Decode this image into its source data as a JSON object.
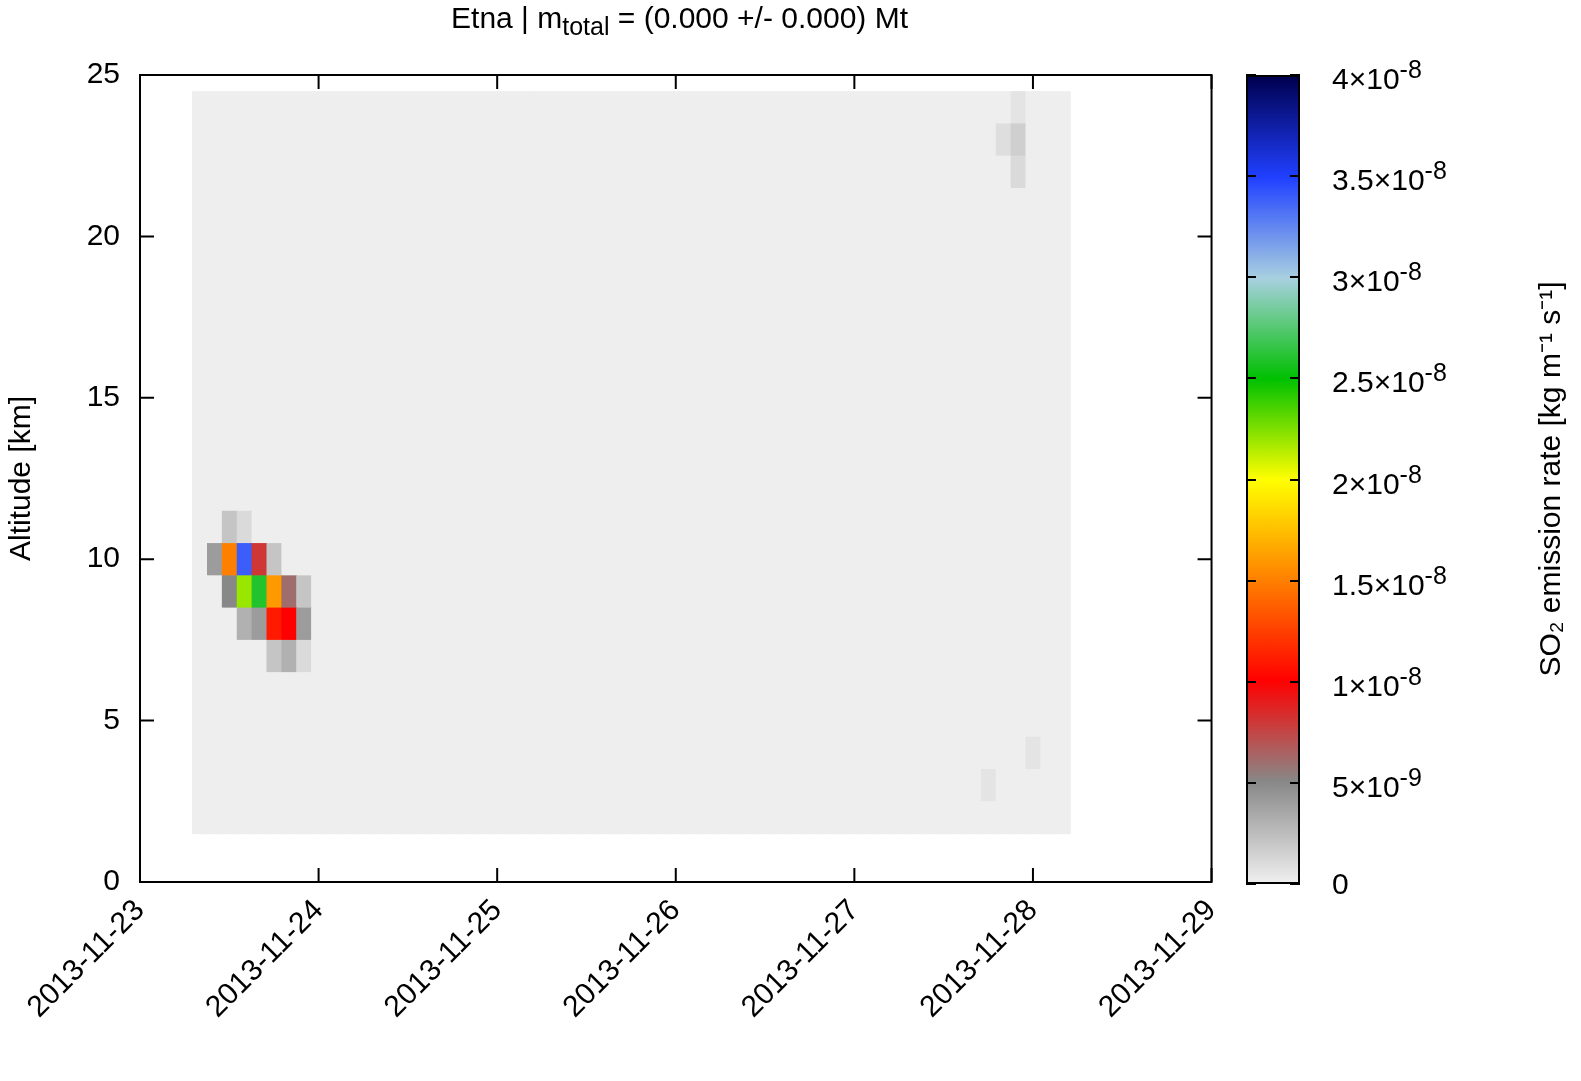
{
  "chart_data": {
    "type": "heatmap",
    "title": "Etna | m$_{total}$ = (0.000 +/- 0.000) Mt",
    "ylabel": "Altitude [km]",
    "clabel": "SO₂ emission rate [kg m⁻¹ s⁻¹]",
    "x": [
      "2013-11-23T08:00",
      "2013-11-23T10:00",
      "2013-11-23T12:00",
      "2013-11-23T14:00",
      "2013-11-23T16:00",
      "2013-11-23T18:00",
      "2013-11-23T20:00",
      "2013-11-23T22:00",
      "2013-11-24T00:00",
      "2013-11-24T02:00",
      "2013-11-24T04:00",
      "2013-11-24T06:00",
      "2013-11-24T08:00",
      "2013-11-24T10:00",
      "2013-11-24T12:00",
      "2013-11-24T14:00",
      "2013-11-24T16:00",
      "2013-11-24T18:00",
      "2013-11-24T20:00",
      "2013-11-24T22:00",
      "2013-11-25T00:00",
      "2013-11-25T02:00",
      "2013-11-25T04:00",
      "2013-11-25T06:00",
      "2013-11-25T08:00",
      "2013-11-25T10:00",
      "2013-11-25T12:00",
      "2013-11-25T14:00",
      "2013-11-25T16:00",
      "2013-11-25T18:00",
      "2013-11-25T20:00",
      "2013-11-25T22:00",
      "2013-11-26T00:00",
      "2013-11-26T02:00",
      "2013-11-26T04:00",
      "2013-11-26T06:00",
      "2013-11-26T08:00",
      "2013-11-26T10:00",
      "2013-11-26T12:00",
      "2013-11-26T14:00",
      "2013-11-26T16:00",
      "2013-11-26T18:00",
      "2013-11-26T20:00",
      "2013-11-26T22:00",
      "2013-11-27T00:00",
      "2013-11-27T02:00",
      "2013-11-27T04:00",
      "2013-11-27T06:00",
      "2013-11-27T08:00",
      "2013-11-27T10:00",
      "2013-11-27T12:00",
      "2013-11-27T14:00",
      "2013-11-27T16:00",
      "2013-11-27T18:00",
      "2013-11-27T20:00",
      "2013-11-27T22:00",
      "2013-11-28T00:00",
      "2013-11-28T02:00",
      "2013-11-28T04:00"
    ],
    "y": [
      24,
      23,
      22,
      21,
      20,
      19,
      18,
      17,
      16,
      15,
      14,
      13,
      12,
      11,
      10,
      9,
      8,
      7,
      6,
      5,
      4,
      3,
      2
    ],
    "cells": [
      [
        0,
        0,
        0,
        0,
        0,
        0,
        0,
        0,
        0,
        0,
        0,
        0,
        0,
        0,
        0,
        0,
        0,
        0,
        0,
        0,
        0,
        0,
        0,
        0,
        0,
        0,
        0,
        0,
        0,
        0,
        0,
        0,
        0,
        0,
        0,
        0,
        0,
        0,
        0,
        0,
        0,
        0,
        0,
        0,
        0,
        0,
        0,
        0,
        0,
        0,
        0,
        0,
        0,
        0,
        0,
        5e-10,
        0,
        0,
        0
      ],
      [
        0,
        0,
        0,
        0,
        0,
        0,
        0,
        0,
        0,
        0,
        0,
        0,
        0,
        0,
        0,
        0,
        0,
        0,
        0,
        0,
        0,
        0,
        0,
        0,
        0,
        0,
        0,
        0,
        0,
        0,
        0,
        0,
        0,
        0,
        0,
        0,
        0,
        0,
        0,
        0,
        0,
        0,
        0,
        0,
        0,
        0,
        0,
        0,
        0,
        0,
        0,
        0,
        0,
        0,
        8e-10,
        1.5e-09,
        0,
        0,
        0
      ],
      [
        0,
        0,
        0,
        0,
        0,
        0,
        0,
        0,
        0,
        0,
        0,
        0,
        0,
        0,
        0,
        0,
        0,
        0,
        0,
        0,
        0,
        0,
        0,
        0,
        0,
        0,
        0,
        0,
        0,
        0,
        0,
        0,
        0,
        0,
        0,
        0,
        0,
        0,
        0,
        0,
        0,
        0,
        0,
        0,
        0,
        0,
        0,
        0,
        0,
        0,
        0,
        0,
        0,
        0,
        0,
        1e-09,
        0,
        0,
        0
      ],
      [
        0,
        0,
        0,
        0,
        0,
        0,
        0,
        0,
        0,
        0,
        0,
        0,
        0,
        0,
        0,
        0,
        0,
        0,
        0,
        0,
        0,
        0,
        0,
        0,
        0,
        0,
        0,
        0,
        0,
        0,
        0,
        0,
        0,
        0,
        0,
        0,
        0,
        0,
        0,
        0,
        0,
        0,
        0,
        0,
        0,
        0,
        0,
        0,
        0,
        0,
        0,
        0,
        0,
        0,
        0,
        0,
        0,
        0,
        0
      ],
      [
        0,
        0,
        0,
        0,
        0,
        0,
        0,
        0,
        0,
        0,
        0,
        0,
        0,
        0,
        0,
        0,
        0,
        0,
        0,
        0,
        0,
        0,
        0,
        0,
        0,
        0,
        0,
        0,
        0,
        0,
        0,
        0,
        0,
        0,
        0,
        0,
        0,
        0,
        0,
        0,
        0,
        0,
        0,
        0,
        0,
        0,
        0,
        0,
        0,
        0,
        0,
        0,
        0,
        0,
        0,
        0,
        0,
        0,
        0
      ],
      [
        0,
        0,
        0,
        0,
        0,
        0,
        0,
        0,
        0,
        0,
        0,
        0,
        0,
        0,
        0,
        0,
        0,
        0,
        0,
        0,
        0,
        0,
        0,
        0,
        0,
        0,
        0,
        0,
        0,
        0,
        0,
        0,
        0,
        0,
        0,
        0,
        0,
        0,
        0,
        0,
        0,
        0,
        0,
        0,
        0,
        0,
        0,
        0,
        0,
        0,
        0,
        0,
        0,
        0,
        0,
        0,
        0,
        0,
        0
      ],
      [
        0,
        0,
        0,
        0,
        0,
        0,
        0,
        0,
        0,
        0,
        0,
        0,
        0,
        0,
        0,
        0,
        0,
        0,
        0,
        0,
        0,
        0,
        0,
        0,
        0,
        0,
        0,
        0,
        0,
        0,
        0,
        0,
        0,
        0,
        0,
        0,
        0,
        0,
        0,
        0,
        0,
        0,
        0,
        0,
        0,
        0,
        0,
        0,
        0,
        0,
        0,
        0,
        0,
        0,
        0,
        0,
        0,
        0,
        0
      ],
      [
        0,
        0,
        0,
        0,
        0,
        0,
        0,
        0,
        0,
        0,
        0,
        0,
        0,
        0,
        0,
        0,
        0,
        0,
        0,
        0,
        0,
        0,
        0,
        0,
        0,
        0,
        0,
        0,
        0,
        0,
        0,
        0,
        0,
        0,
        0,
        0,
        0,
        0,
        0,
        0,
        0,
        0,
        0,
        0,
        0,
        0,
        0,
        0,
        0,
        0,
        0,
        0,
        0,
        0,
        0,
        0,
        0,
        0,
        0
      ],
      [
        0,
        0,
        0,
        0,
        0,
        0,
        0,
        0,
        0,
        0,
        0,
        0,
        0,
        0,
        0,
        0,
        0,
        0,
        0,
        0,
        0,
        0,
        0,
        0,
        0,
        0,
        0,
        0,
        0,
        0,
        0,
        0,
        0,
        0,
        0,
        0,
        0,
        0,
        0,
        0,
        0,
        0,
        0,
        0,
        0,
        0,
        0,
        0,
        0,
        0,
        0,
        0,
        0,
        0,
        0,
        0,
        0,
        0,
        0
      ],
      [
        0,
        0,
        0,
        0,
        0,
        0,
        0,
        0,
        0,
        0,
        0,
        0,
        0,
        0,
        0,
        0,
        0,
        0,
        0,
        0,
        0,
        0,
        0,
        0,
        0,
        0,
        0,
        0,
        0,
        0,
        0,
        0,
        0,
        0,
        0,
        0,
        0,
        0,
        0,
        0,
        0,
        0,
        0,
        0,
        0,
        0,
        0,
        0,
        0,
        0,
        0,
        0,
        0,
        0,
        0,
        0,
        0,
        0,
        0
      ],
      [
        0,
        0,
        0,
        0,
        0,
        0,
        0,
        0,
        0,
        0,
        0,
        0,
        0,
        0,
        0,
        0,
        0,
        0,
        0,
        0,
        0,
        0,
        0,
        0,
        0,
        0,
        0,
        0,
        0,
        0,
        0,
        0,
        0,
        0,
        0,
        0,
        0,
        0,
        0,
        0,
        0,
        0,
        0,
        0,
        0,
        0,
        0,
        0,
        0,
        0,
        0,
        0,
        0,
        0,
        0,
        0,
        0,
        0,
        0
      ],
      [
        0,
        0,
        0,
        0,
        0,
        0,
        0,
        0,
        0,
        0,
        0,
        0,
        0,
        0,
        0,
        0,
        0,
        0,
        0,
        0,
        0,
        0,
        0,
        0,
        0,
        0,
        0,
        0,
        0,
        0,
        0,
        0,
        0,
        0,
        0,
        0,
        0,
        0,
        0,
        0,
        0,
        0,
        0,
        0,
        0,
        0,
        0,
        0,
        0,
        0,
        0,
        0,
        0,
        0,
        0,
        0,
        0,
        0,
        0
      ],
      [
        0,
        0,
        0,
        0,
        0,
        0,
        0,
        0,
        0,
        0,
        0,
        0,
        0,
        0,
        0,
        0,
        0,
        0,
        0,
        0,
        0,
        0,
        0,
        0,
        0,
        0,
        0,
        0,
        0,
        0,
        0,
        0,
        0,
        0,
        0,
        0,
        0,
        0,
        0,
        0,
        0,
        0,
        0,
        0,
        0,
        0,
        0,
        0,
        0,
        0,
        0,
        0,
        0,
        0,
        0,
        0,
        0,
        0,
        0
      ],
      [
        0,
        0,
        2e-09,
        1e-09,
        0,
        0,
        0,
        0,
        0,
        0,
        0,
        0,
        0,
        0,
        0,
        0,
        0,
        0,
        0,
        0,
        0,
        0,
        0,
        0,
        0,
        0,
        0,
        0,
        0,
        0,
        0,
        0,
        0,
        0,
        0,
        0,
        0,
        0,
        0,
        0,
        0,
        0,
        0,
        0,
        0,
        0,
        0,
        0,
        0,
        0,
        0,
        0,
        0,
        0,
        0,
        0,
        0,
        0,
        0
      ],
      [
        0,
        4e-09,
        1.5e-08,
        3.4e-08,
        8e-09,
        2e-09,
        0,
        0,
        0,
        0,
        0,
        0,
        0,
        0,
        0,
        0,
        0,
        0,
        0,
        0,
        0,
        0,
        0,
        0,
        0,
        0,
        0,
        0,
        0,
        0,
        0,
        0,
        0,
        0,
        0,
        0,
        0,
        0,
        0,
        0,
        0,
        0,
        0,
        0,
        0,
        0,
        0,
        0,
        0,
        0,
        0,
        0,
        0,
        0,
        0,
        0,
        0,
        0,
        0
      ],
      [
        0,
        0,
        5e-09,
        2.2e-08,
        2.6e-08,
        1.6e-08,
        6e-09,
        2e-09,
        0,
        0,
        0,
        0,
        0,
        0,
        0,
        0,
        0,
        0,
        0,
        0,
        0,
        0,
        0,
        0,
        0,
        0,
        0,
        0,
        0,
        0,
        0,
        0,
        0,
        0,
        0,
        0,
        0,
        0,
        0,
        0,
        0,
        0,
        0,
        0,
        0,
        0,
        0,
        0,
        0,
        0,
        0,
        0,
        0,
        0,
        0,
        0,
        0,
        0,
        0
      ],
      [
        0,
        0,
        0,
        3e-09,
        4e-09,
        1.1e-08,
        1e-08,
        4e-09,
        0,
        0,
        0,
        0,
        0,
        0,
        0,
        0,
        0,
        0,
        0,
        0,
        0,
        0,
        0,
        0,
        0,
        0,
        0,
        0,
        0,
        0,
        0,
        0,
        0,
        0,
        0,
        0,
        0,
        0,
        0,
        0,
        0,
        0,
        0,
        0,
        0,
        0,
        0,
        0,
        0,
        0,
        0,
        0,
        0,
        0,
        0,
        0,
        0,
        0,
        0
      ],
      [
        0,
        0,
        0,
        0,
        0,
        2e-09,
        3e-09,
        1e-09,
        0,
        0,
        0,
        0,
        0,
        0,
        0,
        0,
        0,
        0,
        0,
        0,
        0,
        0,
        0,
        0,
        0,
        0,
        0,
        0,
        0,
        0,
        0,
        0,
        0,
        0,
        0,
        0,
        0,
        0,
        0,
        0,
        0,
        0,
        0,
        0,
        0,
        0,
        0,
        0,
        0,
        0,
        0,
        0,
        0,
        0,
        0,
        0,
        0,
        0,
        0
      ],
      [
        0,
        0,
        0,
        0,
        0,
        0,
        0,
        0,
        0,
        0,
        0,
        0,
        0,
        0,
        0,
        0,
        0,
        0,
        0,
        0,
        0,
        0,
        0,
        0,
        0,
        0,
        0,
        0,
        0,
        0,
        0,
        0,
        0,
        0,
        0,
        0,
        0,
        0,
        0,
        0,
        0,
        0,
        0,
        0,
        0,
        0,
        0,
        0,
        0,
        0,
        0,
        0,
        0,
        0,
        0,
        0,
        0,
        0,
        0
      ],
      [
        0,
        0,
        0,
        0,
        0,
        0,
        0,
        0,
        0,
        0,
        0,
        0,
        0,
        0,
        0,
        0,
        0,
        0,
        0,
        0,
        0,
        0,
        0,
        0,
        0,
        0,
        0,
        0,
        0,
        0,
        0,
        0,
        0,
        0,
        0,
        0,
        0,
        0,
        0,
        0,
        0,
        0,
        0,
        0,
        0,
        0,
        0,
        0,
        0,
        0,
        0,
        0,
        0,
        0,
        0,
        0,
        0,
        0,
        0
      ],
      [
        0,
        0,
        0,
        0,
        0,
        0,
        0,
        0,
        0,
        0,
        0,
        0,
        0,
        0,
        0,
        0,
        0,
        0,
        0,
        0,
        0,
        0,
        0,
        0,
        0,
        0,
        0,
        0,
        0,
        0,
        0,
        0,
        0,
        0,
        0,
        0,
        0,
        0,
        0,
        0,
        0,
        0,
        0,
        0,
        0,
        0,
        0,
        0,
        0,
        0,
        0,
        0,
        0,
        0,
        0,
        0,
        5e-10,
        0,
        0
      ],
      [
        0,
        0,
        0,
        0,
        0,
        0,
        0,
        0,
        0,
        0,
        0,
        0,
        0,
        0,
        0,
        0,
        0,
        0,
        0,
        0,
        0,
        0,
        0,
        0,
        0,
        0,
        0,
        0,
        0,
        0,
        0,
        0,
        0,
        0,
        0,
        0,
        0,
        0,
        0,
        0,
        0,
        0,
        0,
        0,
        0,
        0,
        0,
        0,
        0,
        0,
        0,
        0,
        0,
        5e-10,
        0,
        0,
        0,
        0,
        0
      ],
      [
        0,
        0,
        0,
        0,
        0,
        0,
        0,
        0,
        0,
        0,
        0,
        0,
        0,
        0,
        0,
        0,
        0,
        0,
        0,
        0,
        0,
        0,
        0,
        0,
        0,
        0,
        0,
        0,
        0,
        0,
        0,
        0,
        0,
        0,
        0,
        0,
        0,
        0,
        0,
        0,
        0,
        0,
        0,
        0,
        0,
        0,
        0,
        0,
        0,
        0,
        0,
        0,
        0,
        0,
        0,
        0,
        0,
        0,
        0
      ]
    ],
    "xlim": [
      "2013-11-23",
      "2013-11-29"
    ],
    "xticks": [
      "2013-11-23",
      "2013-11-24",
      "2013-11-25",
      "2013-11-26",
      "2013-11-27",
      "2013-11-28",
      "2013-11-29"
    ],
    "ylim": [
      0,
      25
    ],
    "yticks": [
      0,
      5,
      10,
      15,
      20,
      25
    ],
    "clim": [
      0,
      4e-08
    ],
    "cticks": [
      {
        "value": 0,
        "label": "0"
      },
      {
        "value": 5e-09,
        "label": "5×10$^{-9}$"
      },
      {
        "value": 1e-08,
        "label": "1×10$^{-8}$"
      },
      {
        "value": 1.5e-08,
        "label": "1.5×10$^{-8}$"
      },
      {
        "value": 2e-08,
        "label": "2×10$^{-8}$"
      },
      {
        "value": 2.5e-08,
        "label": "2.5×10$^{-8}$"
      },
      {
        "value": 3e-08,
        "label": "3×10$^{-8}$"
      },
      {
        "value": 3.5e-08,
        "label": "3.5×10$^{-8}$"
      },
      {
        "value": 4e-08,
        "label": "4×10$^{-8}$"
      }
    ]
  }
}
